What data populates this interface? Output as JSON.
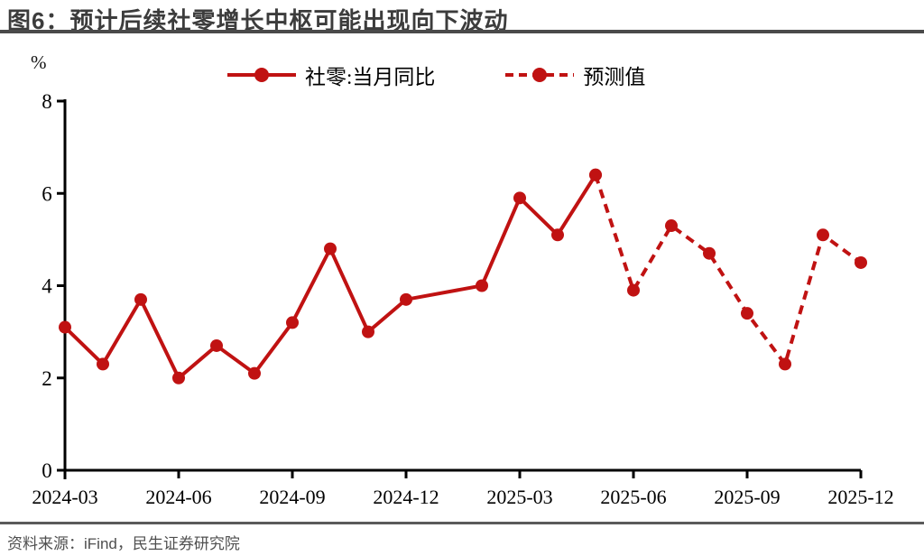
{
  "figure": {
    "title": "图6：预计后续社零增长中枢可能出现向下波动",
    "unit_label": "%",
    "source": "资料来源：iFind，民生证券研究院"
  },
  "legend": [
    {
      "label": "社零:当月同比",
      "style": "solid"
    },
    {
      "label": "预测值",
      "style": "dashed"
    }
  ],
  "colors": {
    "series_red": "#c01212",
    "axis": "#000000",
    "title_text": "#3c3c3c",
    "rule_dark": "#4a4a4a",
    "source_text": "#4f4f4f"
  },
  "chart_data": {
    "type": "line",
    "title": "图6：预计后续社零增长中枢可能出现向下波动",
    "xlabel": "",
    "ylabel": "%",
    "ylim": [
      0,
      8
    ],
    "yticks": [
      0,
      2,
      4,
      6,
      8
    ],
    "xticks": [
      "2024-03",
      "2024-06",
      "2024-09",
      "2024-12",
      "2025-03",
      "2025-06",
      "2025-09",
      "2025-12"
    ],
    "grid": false,
    "legend_position": "top",
    "series": [
      {
        "name": "社零:当月同比",
        "style": "solid",
        "points": [
          [
            "2024-03",
            3.1
          ],
          [
            "2024-04",
            2.3
          ],
          [
            "2024-05",
            3.7
          ],
          [
            "2024-06",
            2.0
          ],
          [
            "2024-07",
            2.7
          ],
          [
            "2024-08",
            2.1
          ],
          [
            "2024-09",
            3.2
          ],
          [
            "2024-10",
            4.8
          ],
          [
            "2024-11",
            3.0
          ],
          [
            "2024-12",
            3.7
          ],
          [
            "2025-02",
            4.0
          ],
          [
            "2025-03",
            5.9
          ],
          [
            "2025-04",
            5.1
          ],
          [
            "2025-05",
            6.4
          ]
        ]
      },
      {
        "name": "预测值",
        "style": "dashed",
        "points": [
          [
            "2025-05",
            6.4
          ],
          [
            "2025-06",
            3.9
          ],
          [
            "2025-07",
            5.3
          ],
          [
            "2025-08",
            4.7
          ],
          [
            "2025-09",
            3.4
          ],
          [
            "2025-10",
            2.3
          ],
          [
            "2025-11",
            5.1
          ],
          [
            "2025-12",
            4.5
          ]
        ]
      }
    ]
  }
}
